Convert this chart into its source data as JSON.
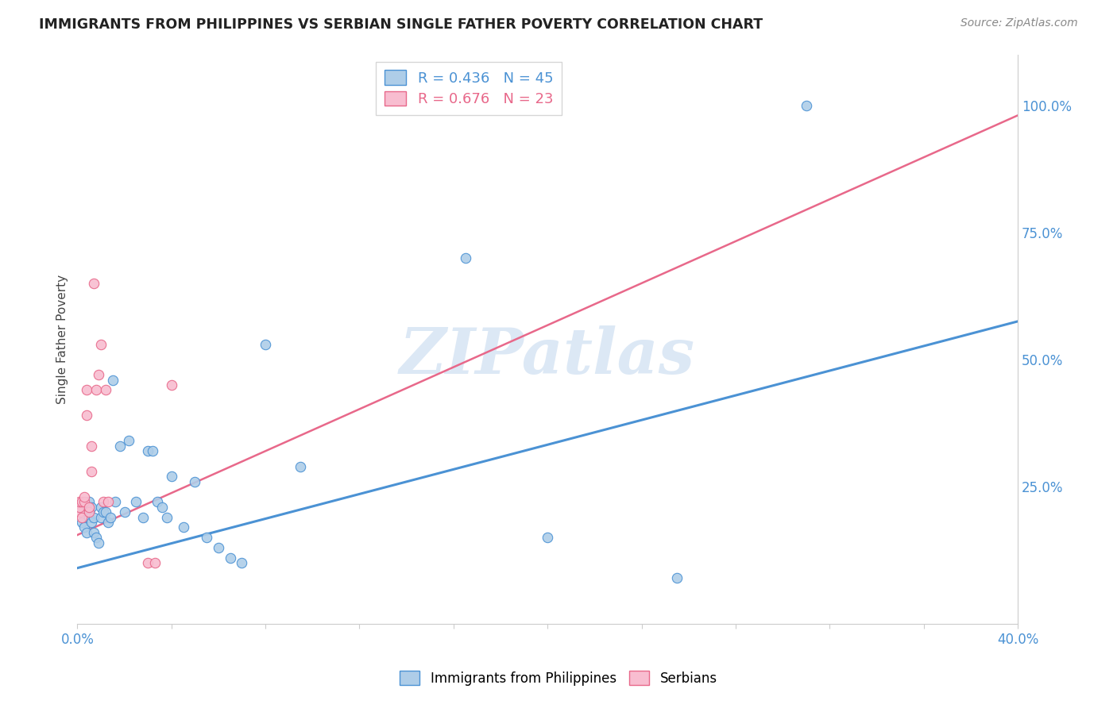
{
  "title": "IMMIGRANTS FROM PHILIPPINES VS SERBIAN SINGLE FATHER POVERTY CORRELATION CHART",
  "source": "Source: ZipAtlas.com",
  "ylabel": "Single Father Poverty",
  "right_ytick_vals": [
    1.0,
    0.75,
    0.5,
    0.25
  ],
  "legend_blue_r": "R = 0.436",
  "legend_blue_n": "N = 45",
  "legend_pink_r": "R = 0.676",
  "legend_pink_n": "N = 23",
  "blue_scatter_x": [
    0.001,
    0.002,
    0.003,
    0.004,
    0.004,
    0.005,
    0.005,
    0.005,
    0.006,
    0.006,
    0.007,
    0.007,
    0.008,
    0.009,
    0.01,
    0.01,
    0.011,
    0.012,
    0.013,
    0.014,
    0.015,
    0.016,
    0.018,
    0.02,
    0.022,
    0.025,
    0.028,
    0.03,
    0.032,
    0.034,
    0.036,
    0.038,
    0.04,
    0.045,
    0.05,
    0.055,
    0.06,
    0.065,
    0.07,
    0.08,
    0.095,
    0.165,
    0.2,
    0.255,
    0.31
  ],
  "blue_scatter_y": [
    0.21,
    0.18,
    0.17,
    0.16,
    0.2,
    0.2,
    0.19,
    0.22,
    0.18,
    0.21,
    0.16,
    0.19,
    0.15,
    0.14,
    0.19,
    0.21,
    0.2,
    0.2,
    0.18,
    0.19,
    0.46,
    0.22,
    0.33,
    0.2,
    0.34,
    0.22,
    0.19,
    0.32,
    0.32,
    0.22,
    0.21,
    0.19,
    0.27,
    0.17,
    0.26,
    0.15,
    0.13,
    0.11,
    0.1,
    0.53,
    0.29,
    0.7,
    0.15,
    0.07,
    1.0
  ],
  "pink_scatter_x": [
    0.001,
    0.001,
    0.001,
    0.002,
    0.002,
    0.003,
    0.003,
    0.004,
    0.004,
    0.005,
    0.005,
    0.006,
    0.006,
    0.007,
    0.008,
    0.009,
    0.01,
    0.011,
    0.012,
    0.013,
    0.03,
    0.033,
    0.04
  ],
  "pink_scatter_y": [
    0.2,
    0.21,
    0.22,
    0.19,
    0.22,
    0.22,
    0.23,
    0.39,
    0.44,
    0.2,
    0.21,
    0.28,
    0.33,
    0.65,
    0.44,
    0.47,
    0.53,
    0.22,
    0.44,
    0.22,
    0.1,
    0.1,
    0.45
  ],
  "blue_line_x": [
    0.0,
    0.4
  ],
  "blue_line_y": [
    0.09,
    0.575
  ],
  "pink_line_x": [
    0.0,
    0.4
  ],
  "pink_line_y": [
    0.155,
    0.98
  ],
  "xlim": [
    0.0,
    0.4
  ],
  "ylim": [
    -0.02,
    1.1
  ],
  "blue_color": "#aecde8",
  "pink_color": "#f8bdd0",
  "blue_line_color": "#4b92d4",
  "pink_line_color": "#e8688a",
  "watermark": "ZIPatlas",
  "watermark_color": "#dce8f5",
  "background_color": "#ffffff",
  "grid_color": "#dddddd"
}
